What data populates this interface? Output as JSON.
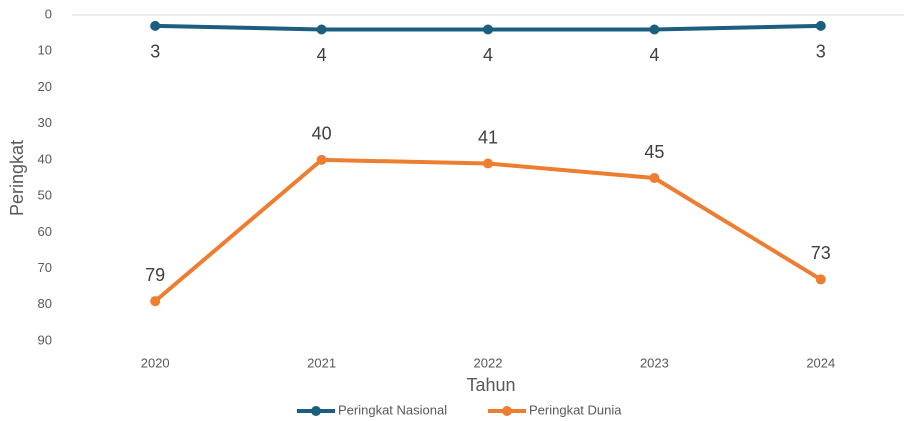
{
  "chart_data": {
    "type": "line",
    "x_label": "Tahun",
    "y_label": "Peringkat",
    "categories": [
      "2020",
      "2021",
      "2022",
      "2023",
      "2024"
    ],
    "series": [
      {
        "name": "Peringkat Nasional",
        "color": "#1b5e7e",
        "values": [
          3,
          4,
          4,
          4,
          3
        ],
        "label_position": "below"
      },
      {
        "name": "Peringkat Dunia",
        "color": "#ed7d31",
        "values": [
          79,
          40,
          41,
          45,
          73
        ],
        "label_position": "above"
      }
    ],
    "ylim": [
      0,
      90
    ],
    "yticks": [
      0,
      10,
      20,
      30,
      40,
      50,
      60,
      70,
      80,
      90
    ],
    "y_inverted": true,
    "grid": false,
    "legend": "bottom"
  }
}
